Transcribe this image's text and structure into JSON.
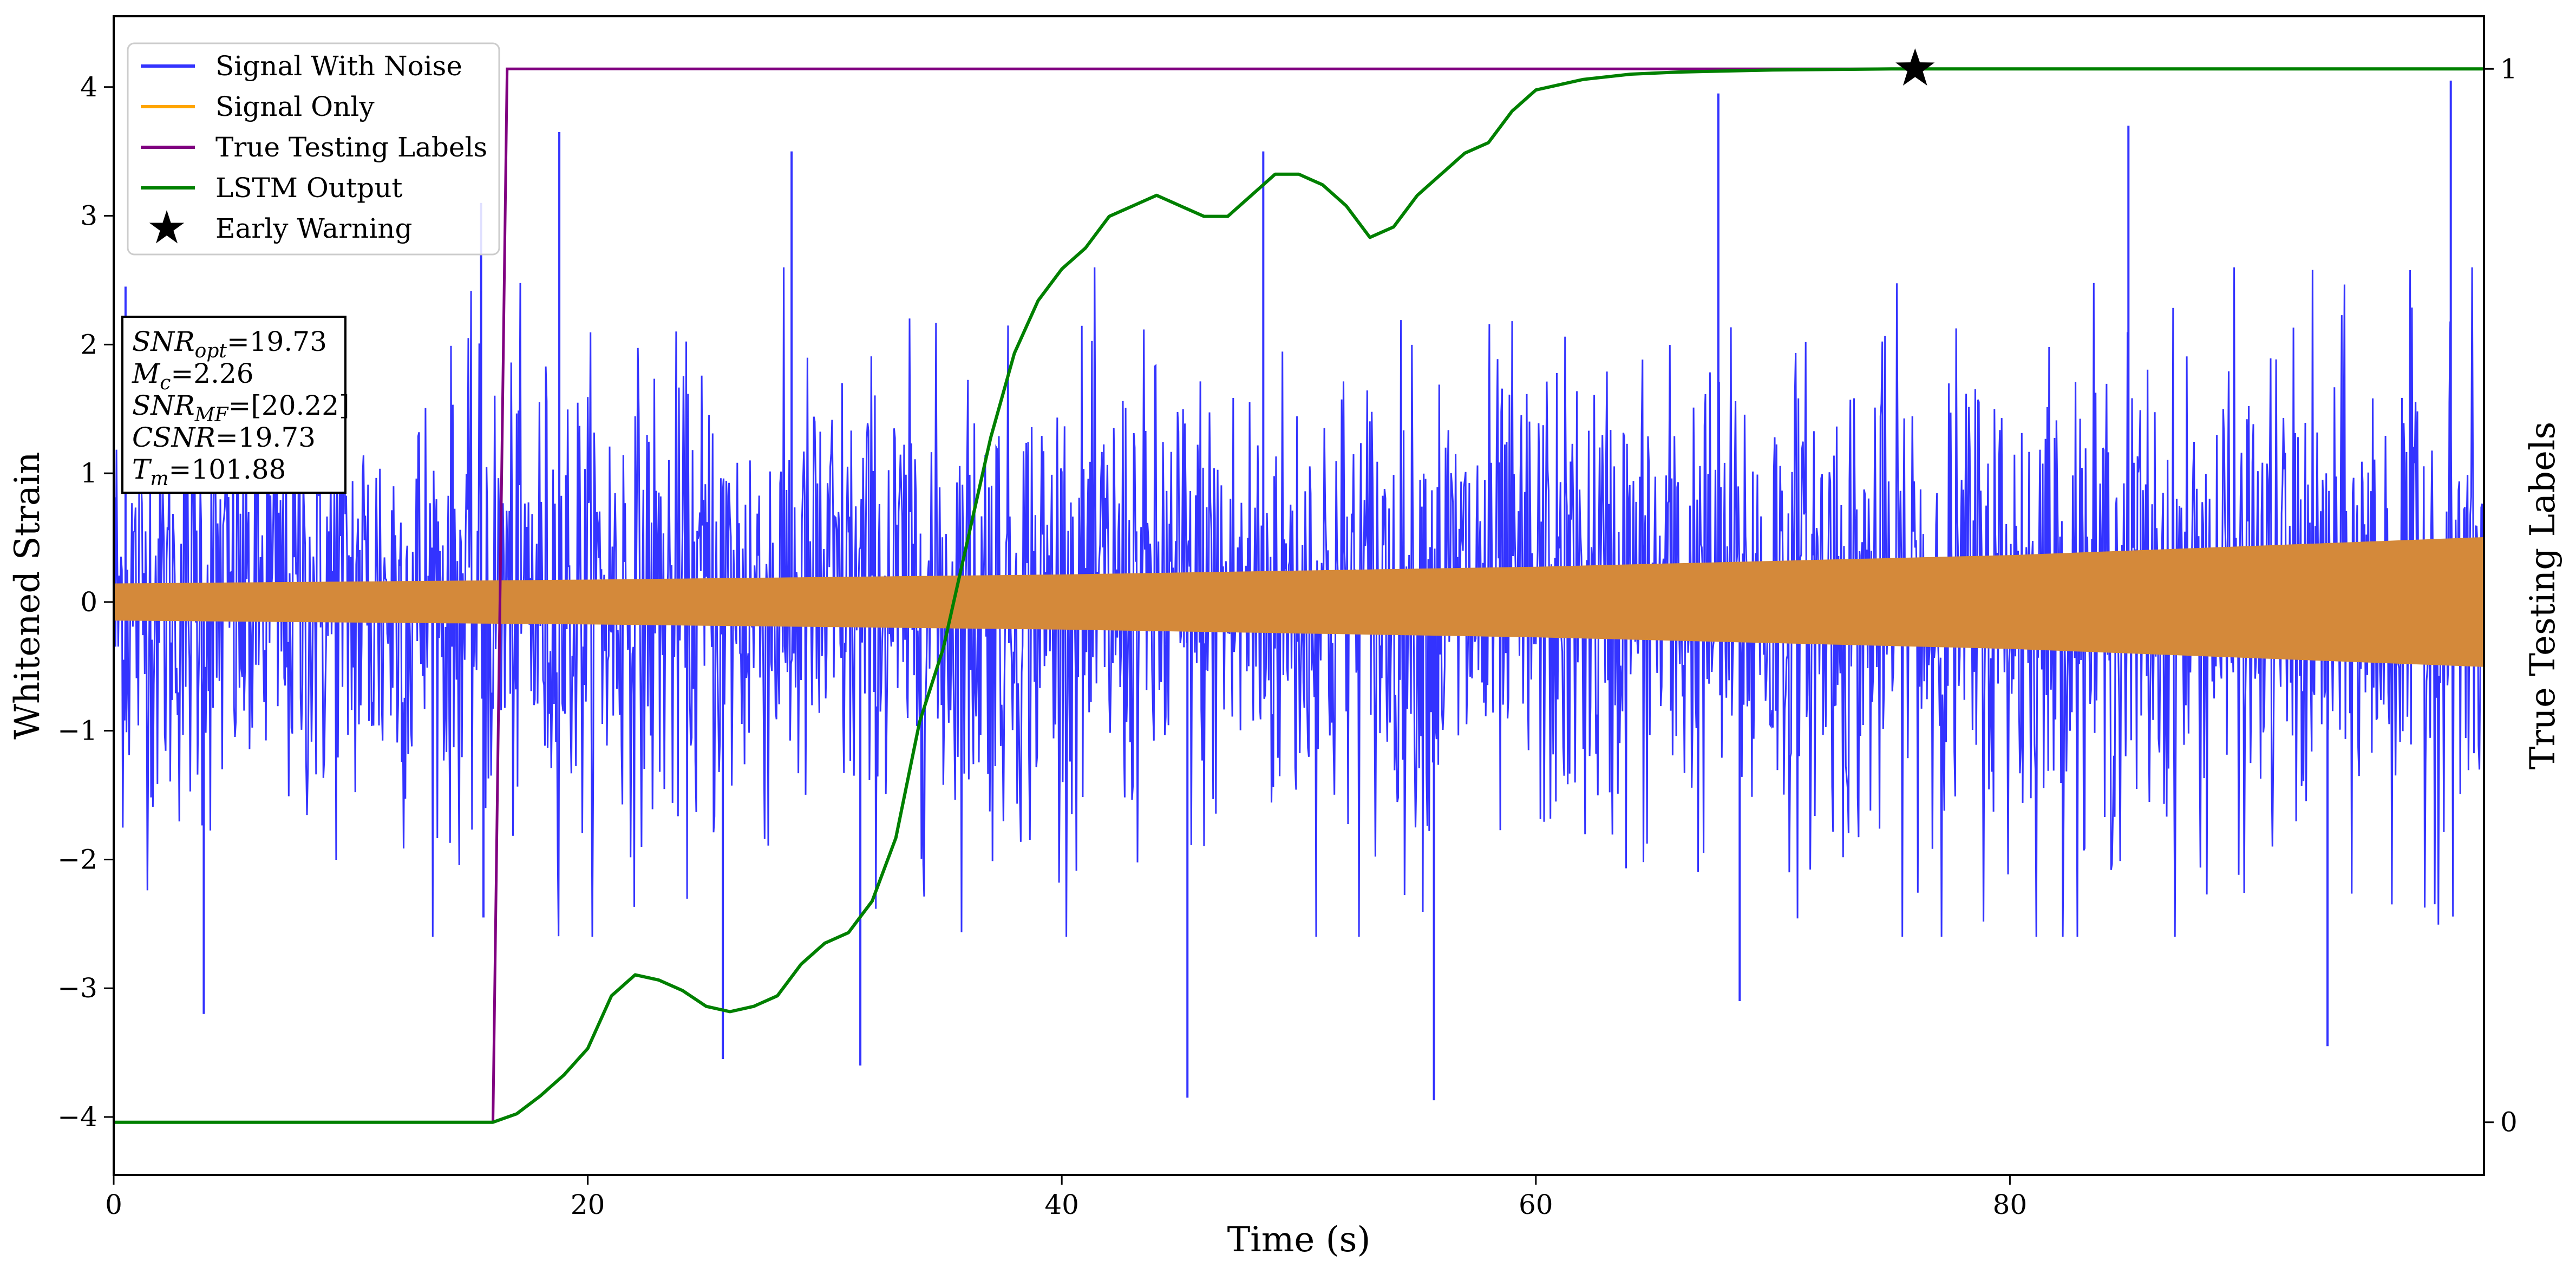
{
  "chart_data": {
    "type": "line",
    "xlabel": "Time (s)",
    "ylabel": "Whitened Strain",
    "y2label": "True Testing Labels",
    "xlim": [
      0,
      100
    ],
    "ylim": [
      -4.45,
      4.55
    ],
    "y2lim": [
      -0.05,
      1.05
    ],
    "x_ticks": [
      "0",
      "20",
      "40",
      "60",
      "80"
    ],
    "x_tick_values": [
      0,
      20,
      40,
      60,
      80
    ],
    "y_ticks": [
      "−4",
      "−3",
      "−2",
      "−1",
      "0",
      "1",
      "2",
      "3",
      "4"
    ],
    "y_tick_values": [
      -4,
      -3,
      -2,
      -1,
      0,
      1,
      2,
      3,
      4
    ],
    "y2_ticks": [
      "0",
      "1"
    ],
    "y2_tick_values": [
      0,
      1
    ],
    "grid": false,
    "legend_position": "top-left",
    "series": [
      {
        "name": "Signal With Noise",
        "color": "#3333ff",
        "style": "dense noisy oscillation",
        "envelope_x": [
          0,
          20,
          40,
          60,
          80,
          100
        ],
        "typical_range": [
          [
            -1.7,
            1.7
          ],
          [
            -1.8,
            1.8
          ],
          [
            -1.8,
            1.8
          ],
          [
            -1.85,
            1.85
          ],
          [
            -1.9,
            1.9
          ],
          [
            -1.9,
            1.9
          ]
        ],
        "peaks_max": [
          [
            0.5,
            2.45
          ],
          [
            15.5,
            3.1
          ],
          [
            18.8,
            3.65
          ],
          [
            28.6,
            3.5
          ],
          [
            48.5,
            3.5
          ],
          [
            67.7,
            3.95
          ],
          [
            85.0,
            3.7
          ],
          [
            98.6,
            4.05
          ]
        ],
        "peaks_min": [
          [
            3.8,
            -3.2
          ],
          [
            15.6,
            -2.45
          ],
          [
            25.7,
            -3.55
          ],
          [
            31.5,
            -3.6
          ],
          [
            45.3,
            -3.85
          ],
          [
            55.7,
            -3.87
          ],
          [
            68.6,
            -3.1
          ],
          [
            93.4,
            -3.45
          ]
        ]
      },
      {
        "name": "Signal Only",
        "color": "#ffa500",
        "style": "chirp oscillation drawn as filled band",
        "x": [
          0,
          20,
          40,
          60,
          80,
          100
        ],
        "amplitude": [
          0.14,
          0.17,
          0.21,
          0.27,
          0.36,
          0.5
        ]
      },
      {
        "name": "True Testing Labels",
        "color": "#800080",
        "axis": "right",
        "x": [
          0,
          16.0,
          16.6,
          76.0
        ],
        "y": [
          0,
          0,
          1,
          1
        ]
      },
      {
        "name": "LSTM Output",
        "color": "#008000",
        "axis": "right",
        "x": [
          0,
          16,
          17,
          18,
          19,
          20,
          21,
          22,
          23,
          24,
          25,
          26,
          27,
          28,
          29,
          30,
          31,
          32,
          33,
          34,
          35,
          36,
          37,
          38,
          39,
          40,
          41,
          42,
          43,
          44,
          45,
          46,
          47,
          48,
          49,
          50,
          51,
          52,
          53,
          54,
          55,
          56,
          57,
          58,
          59,
          60,
          62,
          64,
          66,
          70,
          75,
          80,
          90,
          100
        ],
        "y": [
          0,
          0,
          0.008,
          0.025,
          0.045,
          0.07,
          0.12,
          0.14,
          0.135,
          0.125,
          0.11,
          0.105,
          0.11,
          0.12,
          0.15,
          0.17,
          0.18,
          0.21,
          0.27,
          0.38,
          0.45,
          0.55,
          0.65,
          0.73,
          0.78,
          0.81,
          0.83,
          0.86,
          0.87,
          0.88,
          0.87,
          0.86,
          0.86,
          0.88,
          0.9,
          0.9,
          0.89,
          0.87,
          0.84,
          0.85,
          0.88,
          0.9,
          0.92,
          0.93,
          0.96,
          0.98,
          0.99,
          0.995,
          0.997,
          0.999,
          1.0,
          1.0,
          1.0,
          1.0
        ]
      },
      {
        "name": "Early Warning",
        "color": "#000000",
        "marker": "star",
        "axis": "right",
        "x": [
          76.0
        ],
        "y": [
          1.0
        ]
      }
    ],
    "annotation_lines": [
      {
        "symbol": "SNR",
        "subscript": "opt",
        "value": "=19.73"
      },
      {
        "symbol": "M",
        "subscript": "c",
        "value": "=2.26"
      },
      {
        "symbol": "SNR",
        "subscript": "MF",
        "value": "=[20.22]"
      },
      {
        "symbol": "CSNR",
        "subscript": "",
        "value": "=19.73"
      },
      {
        "symbol": "T",
        "subscript": "m",
        "value": "=101.88"
      }
    ]
  }
}
